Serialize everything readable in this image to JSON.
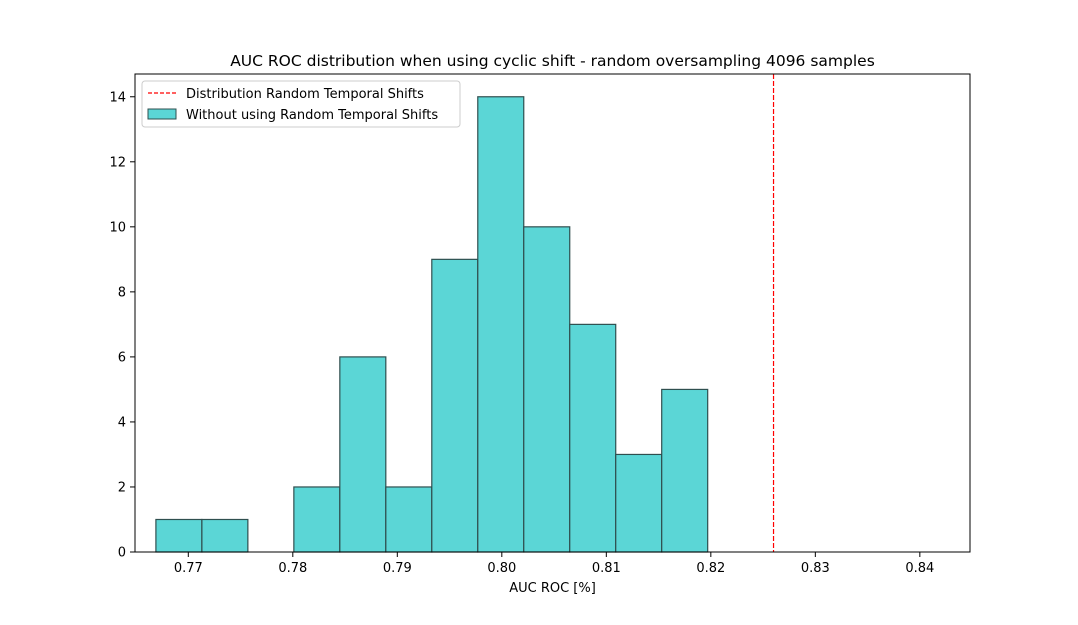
{
  "chart_data": {
    "type": "bar",
    "title": "AUC ROC distribution when using cyclic shift - random oversampling 4096 samples",
    "xlabel": "AUC ROC [%]",
    "ylabel": "",
    "xlim": [
      0.7649,
      0.8448
    ],
    "ylim": [
      0,
      14.7
    ],
    "xticks": [
      0.77,
      0.78,
      0.79,
      0.8,
      0.81,
      0.82,
      0.83,
      0.84
    ],
    "xtick_labels": [
      "0.77",
      "0.78",
      "0.79",
      "0.80",
      "0.81",
      "0.82",
      "0.83",
      "0.84"
    ],
    "yticks": [
      0,
      2,
      4,
      6,
      8,
      10,
      12,
      14
    ],
    "ytick_labels": [
      "0",
      "2",
      "4",
      "6",
      "8",
      "10",
      "12",
      "14"
    ],
    "grid": false,
    "legend_position": "upper-left",
    "histogram": {
      "name": "Without using Random Temporal Shifts",
      "color": "#5bd6d6",
      "edge_color": "#2f4f4f",
      "bin_start": 0.7669,
      "bin_width": 0.0044,
      "counts": [
        1,
        1,
        0,
        2,
        6,
        2,
        9,
        14,
        10,
        7,
        3,
        5
      ]
    },
    "reference_line": {
      "name": "Distribution Random Temporal Shifts",
      "x": 0.826,
      "color": "#ff0000",
      "style": "dashed"
    }
  }
}
